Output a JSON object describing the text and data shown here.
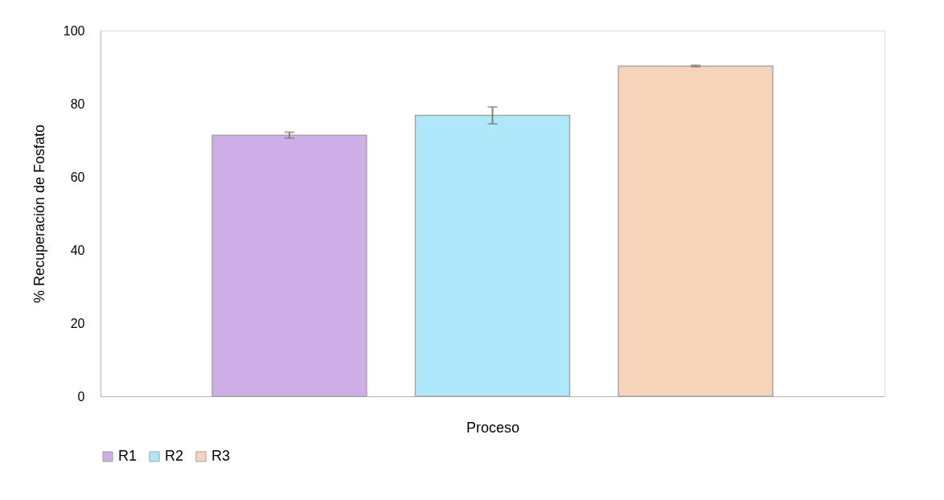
{
  "chart_data": {
    "type": "bar",
    "xlabel": "Proceso",
    "ylabel": "% Recuperación de Fosfato",
    "categories": [
      null
    ],
    "series": [
      {
        "name": "R1",
        "color": "#cdaee6",
        "values": [
          71.4
        ],
        "errors": [
          0.8
        ]
      },
      {
        "name": "R2",
        "color": "#b0e8fb",
        "values": [
          76.8
        ],
        "errors": [
          2.3
        ]
      },
      {
        "name": "R3",
        "color": "#f7d3b9",
        "values": [
          90.3
        ],
        "errors": [
          0.2
        ]
      }
    ],
    "ylim": [
      0,
      100
    ],
    "yticks": [
      0,
      20,
      40,
      60,
      80,
      100
    ],
    "grid": false,
    "legend": "bottom"
  }
}
